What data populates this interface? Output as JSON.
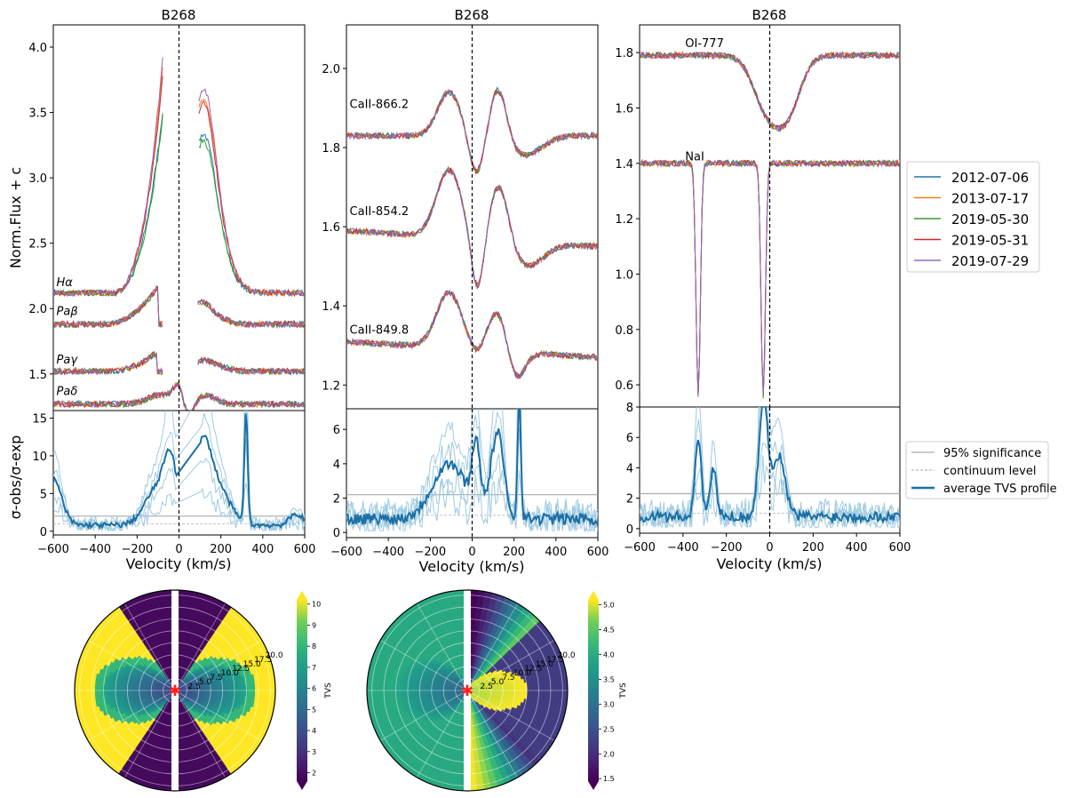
{
  "colors": {
    "2012-07-06": "#1f77b4",
    "2013-07-17": "#ff7f0e",
    "2019-05-30": "#2ca02c",
    "2019-05-31": "#d62728",
    "2019-07-29": "#9467bd",
    "tvs_avg": "#1a6fa5",
    "tvs_ind": "#9ecae1",
    "sig95": "#aaaaaa",
    "cont": "#aaaaaa"
  },
  "legend_top": {
    "placement": "right of right panel",
    "entries": [
      "2012-07-06",
      "2013-07-17",
      "2019-05-30",
      "2019-05-31",
      "2019-07-29"
    ]
  },
  "legend_bottom": {
    "entries": [
      "95% significance",
      "continuum level",
      "average TVS profile"
    ]
  },
  "chart_data": [
    {
      "type": "line",
      "panel": "left-top",
      "title": "B268",
      "ylabel": "Norm.Flux + c",
      "xlim": [
        -600,
        600
      ],
      "ylim": [
        1.22,
        4.17
      ],
      "yticks": [
        "1.5",
        "2.0",
        "2.5",
        "3.0",
        "3.5",
        "4.0"
      ],
      "ytick_values": [
        1.5,
        2.0,
        2.5,
        3.0,
        3.5,
        4.0
      ],
      "vline_x": 0,
      "line_labels": [
        {
          "text": "Hα",
          "x": -585,
          "y": 2.17
        },
        {
          "text": "Paβ",
          "x": -585,
          "y": 1.95
        },
        {
          "text": "Paγ",
          "x": -585,
          "y": 1.58
        },
        {
          "text": "Paδ",
          "x": -585,
          "y": 1.34
        }
      ],
      "profiles": [
        {
          "name": "Hα",
          "base": 2.12,
          "segments": [
            [
              -600,
              -75
            ],
            [
              95,
              600
            ]
          ],
          "features": [
            [
              -75,
              1.55,
              80,
              "rise"
            ],
            [
              110,
              0.9,
              60
            ],
            [
              140,
              0.45,
              80
            ]
          ],
          "peak_spread": [
            0.06,
            0.4,
            0.0,
            0.35,
            0.5
          ]
        },
        {
          "name": "Paβ",
          "base": 1.88,
          "segments": [
            [
              -600,
              -75
            ],
            [
              90,
              600
            ]
          ],
          "features": [
            [
              -110,
              0.3,
              90,
              "rise"
            ],
            [
              105,
              0.13,
              40
            ],
            [
              160,
              0.06,
              60
            ]
          ],
          "peak_spread": [
            0.02,
            0.05,
            0.02,
            0.04,
            0.06
          ]
        },
        {
          "name": "Paγ",
          "base": 1.52,
          "segments": [
            [
              -600,
              -75
            ],
            [
              90,
              600
            ]
          ],
          "features": [
            [
              -120,
              0.13,
              80,
              "rise"
            ],
            [
              110,
              0.06,
              40
            ],
            [
              170,
              0.04,
              60
            ]
          ],
          "peak_spread": [
            0.02,
            0.03,
            0.02,
            0.03,
            0.04
          ]
        },
        {
          "name": "Paδ",
          "base": 1.27,
          "segments": [
            [
              -600,
              600
            ]
          ],
          "features": [
            [
              -90,
              0.07,
              60
            ],
            [
              0,
              0.16,
              25
            ],
            [
              40,
              -0.13,
              30
            ],
            [
              120,
              0.07,
              50
            ]
          ],
          "peak_spread": [
            0.01,
            0.02,
            0.01,
            0.02,
            0.02
          ]
        }
      ]
    },
    {
      "type": "line",
      "panel": "left-bottom",
      "ylabel": "σ-obs/σ-exp",
      "xlabel": "Velocity (km/s)",
      "xlim": [
        -600,
        600
      ],
      "ylim": [
        -0.5,
        16
      ],
      "yticks": [
        "0",
        "5",
        "10",
        "15"
      ],
      "ytick_values": [
        0,
        5,
        10,
        15
      ],
      "xticks": [
        "−600",
        "−400",
        "−200",
        "0",
        "200",
        "400",
        "600"
      ],
      "xtick_values": [
        -600,
        -400,
        -200,
        0,
        200,
        400,
        600
      ],
      "sig95": 2.0,
      "continuum": 1.0,
      "avg_peaks": [
        [
          -600,
          6,
          40
        ],
        [
          -100,
          5,
          60
        ],
        [
          -40,
          7,
          30
        ],
        [
          110,
          9,
          40
        ],
        [
          180,
          5,
          60
        ],
        [
          320,
          15,
          8
        ],
        [
          560,
          1.5,
          30
        ]
      ],
      "gap": [
        -10,
        100
      ]
    },
    {
      "type": "line",
      "panel": "mid-top",
      "title": "B268",
      "xlim": [
        -600,
        600
      ],
      "ylim": [
        1.14,
        2.11
      ],
      "yticks": [
        "1.2",
        "1.4",
        "1.6",
        "1.8",
        "2.0"
      ],
      "ytick_values": [
        1.2,
        1.4,
        1.6,
        1.8,
        2.0
      ],
      "vline_x": 0,
      "line_labels": [
        {
          "text": "CaII-866.2",
          "x": -585,
          "y": 1.9
        },
        {
          "text": "CaII-854.2",
          "x": -585,
          "y": 1.63
        },
        {
          "text": "CaII-849.8",
          "x": -585,
          "y": 1.33
        }
      ],
      "profiles": [
        {
          "name": "CaII-866.2",
          "base": 1.83,
          "slope": 0.0,
          "features": [
            [
              -110,
              0.11,
              55
            ],
            [
              20,
              -0.1,
              35
            ],
            [
              125,
              0.13,
              40
            ],
            [
              250,
              -0.05,
              80
            ]
          ]
        },
        {
          "name": "CaII-854.2",
          "base": 1.57,
          "slope": -0.02,
          "features": [
            [
              -110,
              0.17,
              60
            ],
            [
              25,
              -0.14,
              30
            ],
            [
              130,
              0.15,
              45
            ],
            [
              260,
              -0.06,
              80
            ]
          ]
        },
        {
          "name": "CaII-849.8",
          "base": 1.29,
          "slope": -0.02,
          "features": [
            [
              -110,
              0.14,
              60
            ],
            [
              20,
              -0.02,
              30
            ],
            [
              120,
              0.1,
              45
            ],
            [
              210,
              -0.07,
              40
            ]
          ]
        }
      ]
    },
    {
      "type": "line",
      "panel": "mid-bottom",
      "xlabel": "Velocity (km/s)",
      "xlim": [
        -600,
        600
      ],
      "ylim": [
        -0.3,
        7.2
      ],
      "yticks": [
        "0",
        "2",
        "4",
        "6"
      ],
      "ytick_values": [
        0,
        2,
        4,
        6
      ],
      "xticks": [
        "−600",
        "−400",
        "−200",
        "0",
        "200",
        "400",
        "600"
      ],
      "xtick_values": [
        -600,
        -400,
        -200,
        0,
        200,
        400,
        600
      ],
      "sig95": 2.2,
      "continuum": 1.0,
      "avg_peaks": [
        [
          -110,
          3.2,
          80
        ],
        [
          20,
          3.8,
          20
        ],
        [
          120,
          5.0,
          30
        ],
        [
          225,
          7.0,
          8
        ]
      ],
      "gap": null
    },
    {
      "type": "line",
      "panel": "right-top",
      "title": "B268",
      "xlim": [
        -600,
        600
      ],
      "ylim": [
        0.52,
        1.9
      ],
      "yticks": [
        "0.6",
        "0.8",
        "1.0",
        "1.2",
        "1.4",
        "1.6",
        "1.8"
      ],
      "ytick_values": [
        0.6,
        0.8,
        1.0,
        1.2,
        1.4,
        1.6,
        1.8
      ],
      "vline_x": 0,
      "line_labels": [
        {
          "text": "OI-777",
          "x": -390,
          "y": 1.82
        },
        {
          "text": "NaI",
          "x": -390,
          "y": 1.41
        }
      ],
      "profiles": [
        {
          "name": "OI-777",
          "base": 1.79,
          "slope": 0.0,
          "features": [
            [
              -20,
              -0.17,
              60
            ],
            [
              80,
              -0.2,
              60
            ]
          ]
        },
        {
          "name": "NaI",
          "base": 1.4,
          "slope": 0.0,
          "features": [
            [
              -330,
              -0.84,
              10
            ],
            [
              -30,
              -0.84,
              10
            ]
          ]
        }
      ]
    },
    {
      "type": "line",
      "panel": "right-bottom",
      "xlabel": "Velocity (km/s)",
      "xlim": [
        -600,
        600
      ],
      "ylim": [
        -0.3,
        8
      ],
      "yticks": [
        "0",
        "2",
        "4",
        "6",
        "8"
      ],
      "ytick_values": [
        0,
        2,
        4,
        6,
        8
      ],
      "xticks": [
        "−600",
        "−400",
        "−200",
        "0",
        "200",
        "400",
        "600"
      ],
      "xtick_values": [
        -600,
        -400,
        -200,
        0,
        200,
        400,
        600
      ],
      "sig95": 2.3,
      "continuum": 1.0,
      "avg_peaks": [
        [
          -330,
          5,
          15
        ],
        [
          -260,
          3,
          15
        ],
        [
          -30,
          7.5,
          20
        ],
        [
          40,
          4,
          30
        ]
      ],
      "gap": null
    },
    {
      "type": "heatmap",
      "panel": "polar-1",
      "colorbar_label": "TVS",
      "colorbar_ticks": [
        "2",
        "3",
        "4",
        "5",
        "6",
        "7",
        "8",
        "9",
        "10"
      ],
      "colorbar_range": [
        1.6,
        10.2
      ],
      "radial_ticks": [
        "2.5",
        "5.0",
        "7.5",
        "10.0",
        "12.5",
        "15.0",
        "17.5",
        "20.0"
      ]
    },
    {
      "type": "heatmap",
      "panel": "polar-2",
      "colorbar_label": "TVS",
      "colorbar_ticks": [
        "1.5",
        "2.0",
        "2.5",
        "3.0",
        "3.5",
        "4.0",
        "4.5",
        "5.0"
      ],
      "colorbar_range": [
        1.45,
        5.1
      ],
      "radial_ticks": [
        "2.5",
        "5.0",
        "7.5",
        "10.0",
        "12.5",
        "15.0",
        "17.5",
        "20.0"
      ]
    }
  ]
}
